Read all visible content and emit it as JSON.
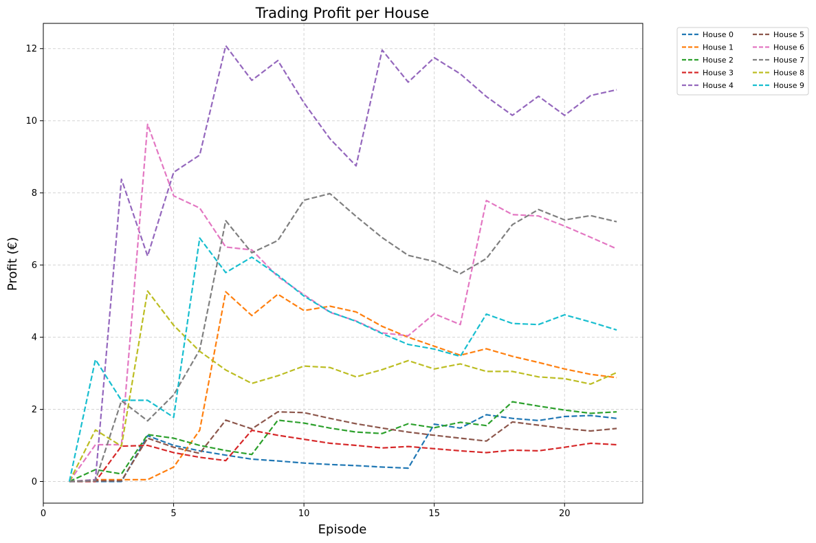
{
  "chart_data": {
    "type": "line",
    "title": "Trading Profit per House",
    "xlabel": "Episode",
    "ylabel": "Profit (€)",
    "xlim": [
      0,
      23
    ],
    "ylim": [
      -0.6,
      12.7
    ],
    "xticks": [
      0,
      5,
      10,
      15,
      20
    ],
    "yticks": [
      0,
      2,
      4,
      6,
      8,
      10,
      12
    ],
    "grid": true,
    "line_style": "dashed",
    "legend_position": "outside top-right",
    "legend_columns": 2,
    "x": [
      1,
      2,
      3,
      4,
      5,
      6,
      7,
      8,
      9,
      10,
      11,
      12,
      13,
      14,
      15,
      16,
      17,
      18,
      19,
      20,
      21,
      22
    ],
    "series": [
      {
        "name": "House 0",
        "color": "#1f77b4",
        "values": [
          0.0,
          0.0,
          0.0,
          1.27,
          1.0,
          0.85,
          0.73,
          0.62,
          0.57,
          0.51,
          0.47,
          0.44,
          0.4,
          0.37,
          1.59,
          1.48,
          1.85,
          1.75,
          1.69,
          1.8,
          1.83,
          1.75
        ]
      },
      {
        "name": "House 1",
        "color": "#ff7f0e",
        "values": [
          0.0,
          0.05,
          0.05,
          0.05,
          0.4,
          1.42,
          5.26,
          4.6,
          5.19,
          4.74,
          4.86,
          4.7,
          4.3,
          4.0,
          3.75,
          3.5,
          3.68,
          3.47,
          3.3,
          3.12,
          2.97,
          2.88
        ]
      },
      {
        "name": "House 2",
        "color": "#2ca02c",
        "values": [
          0.0,
          0.33,
          0.21,
          1.3,
          1.2,
          1.0,
          0.86,
          0.75,
          1.7,
          1.62,
          1.48,
          1.37,
          1.33,
          1.6,
          1.49,
          1.64,
          1.55,
          2.21,
          2.09,
          1.98,
          1.89,
          1.93
        ]
      },
      {
        "name": "House 3",
        "color": "#d62728",
        "values": [
          0.0,
          0.0,
          0.98,
          1.0,
          0.8,
          0.67,
          0.58,
          1.42,
          1.28,
          1.17,
          1.06,
          1.0,
          0.93,
          0.97,
          0.91,
          0.85,
          0.8,
          0.87,
          0.85,
          0.95,
          1.06,
          1.02
        ]
      },
      {
        "name": "House 4",
        "color": "#9467bd",
        "values": [
          0.0,
          0.05,
          8.38,
          6.25,
          8.57,
          9.05,
          12.08,
          11.12,
          11.67,
          10.5,
          9.5,
          8.75,
          11.96,
          11.07,
          11.75,
          11.3,
          10.67,
          10.15,
          10.68,
          10.15,
          10.7,
          10.86
        ]
      },
      {
        "name": "House 5",
        "color": "#8c564b",
        "values": [
          0.0,
          0.02,
          0.02,
          1.2,
          0.95,
          0.78,
          1.7,
          1.46,
          1.93,
          1.91,
          1.75,
          1.6,
          1.48,
          1.37,
          1.28,
          1.2,
          1.12,
          1.65,
          1.56,
          1.47,
          1.4,
          1.47
        ]
      },
      {
        "name": "House 6",
        "color": "#e377c2",
        "values": [
          0.0,
          1.02,
          1.02,
          9.9,
          7.92,
          7.58,
          6.5,
          6.42,
          5.68,
          5.18,
          4.69,
          4.45,
          4.12,
          4.04,
          4.65,
          4.35,
          7.79,
          7.4,
          7.36,
          7.08,
          6.77,
          6.45
        ]
      },
      {
        "name": "House 7",
        "color": "#7f7f7f",
        "values": [
          0.0,
          0.02,
          2.24,
          1.68,
          2.4,
          3.65,
          7.23,
          6.34,
          6.68,
          7.8,
          7.98,
          7.35,
          6.76,
          6.27,
          6.1,
          5.76,
          6.18,
          7.12,
          7.54,
          7.25,
          7.37,
          7.2
        ]
      },
      {
        "name": "House 8",
        "color": "#bcbd22",
        "values": [
          0.0,
          1.43,
          0.98,
          5.28,
          4.33,
          3.61,
          3.09,
          2.72,
          2.93,
          3.2,
          3.16,
          2.9,
          3.1,
          3.35,
          3.12,
          3.26,
          3.05,
          3.05,
          2.9,
          2.85,
          2.7,
          3.02
        ]
      },
      {
        "name": "House 9",
        "color": "#17becf",
        "values": [
          0.0,
          3.38,
          2.25,
          2.25,
          1.78,
          6.75,
          5.79,
          6.22,
          5.72,
          5.14,
          4.7,
          4.44,
          4.1,
          3.8,
          3.67,
          3.47,
          4.64,
          4.38,
          4.35,
          4.62,
          4.42,
          4.2
        ]
      }
    ]
  }
}
